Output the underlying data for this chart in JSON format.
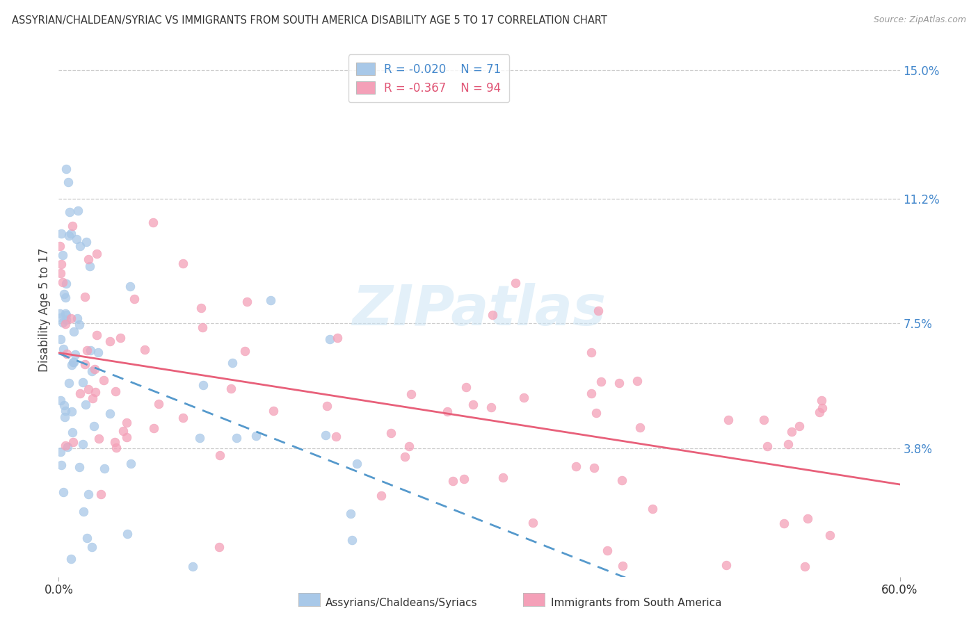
{
  "title": "ASSYRIAN/CHALDEAN/SYRIAC VS IMMIGRANTS FROM SOUTH AMERICA DISABILITY AGE 5 TO 17 CORRELATION CHART",
  "source": "Source: ZipAtlas.com",
  "ylabel_label": "Disability Age 5 to 17",
  "ylabel_ticks": [
    "15.0%",
    "11.2%",
    "7.5%",
    "3.8%"
  ],
  "ylabel_tick_vals": [
    15.0,
    11.2,
    7.5,
    3.8
  ],
  "xtick_labels": [
    "0.0%",
    "60.0%"
  ],
  "xtick_vals": [
    0.0,
    60.0
  ],
  "xlim": [
    0.0,
    60.0
  ],
  "ylim": [
    0.0,
    15.8
  ],
  "legend_label1": "Assyrians/Chaldeans/Syriacs",
  "legend_label2": "Immigrants from South America",
  "R1": "-0.020",
  "N1": "71",
  "R2": "-0.367",
  "N2": "94",
  "color1": "#a8c8e8",
  "color2": "#f4a0b8",
  "line1_color": "#5599cc",
  "line2_color": "#e8607a",
  "watermark": "ZIPatlas",
  "background_color": "#ffffff",
  "grid_color": "#cccccc",
  "title_color": "#333333",
  "source_color": "#999999",
  "ytick_color": "#4488cc",
  "xtick_color": "#333333"
}
